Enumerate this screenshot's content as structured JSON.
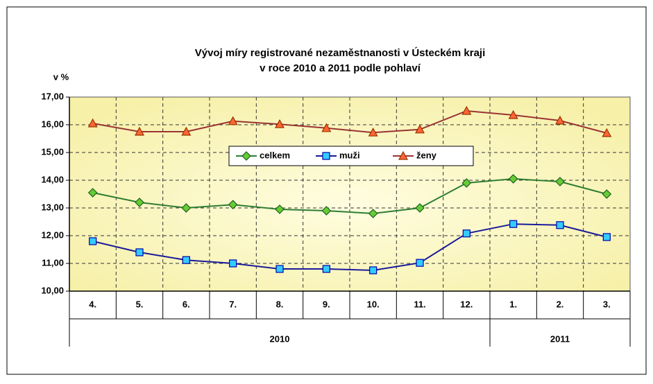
{
  "chart_data": {
    "type": "line",
    "title": [
      "Vývoj míry registrované nezaměstnanosti v Ústeckém kraji",
      "v roce 2010 a 2011 podle pohlaví"
    ],
    "y_label": "v %",
    "categories": [
      "4.",
      "5.",
      "6.",
      "7.",
      "8.",
      "9.",
      "10.",
      "11.",
      "12.",
      "1.",
      "2.",
      "3."
    ],
    "category_groups": [
      "2010",
      "2010",
      "2010",
      "2010",
      "2010",
      "2010",
      "2010",
      "2010",
      "2010",
      "2011",
      "2011",
      "2011"
    ],
    "series": [
      {
        "name": "celkem",
        "color": "#2e7d32",
        "marker": "diamond",
        "values": [
          13.55,
          13.2,
          13.0,
          13.12,
          12.95,
          12.9,
          12.8,
          13.0,
          13.9,
          14.05,
          13.95,
          13.5
        ]
      },
      {
        "name": "muži",
        "color": "#1a1a99",
        "marker": "square",
        "values": [
          11.8,
          11.4,
          11.12,
          11.0,
          10.8,
          10.8,
          10.75,
          11.02,
          12.08,
          12.42,
          12.38,
          11.95
        ]
      },
      {
        "name": "ženy",
        "color": "#993333",
        "marker": "triangle",
        "values": [
          16.05,
          15.75,
          15.75,
          16.13,
          16.02,
          15.88,
          15.72,
          15.83,
          16.5,
          16.35,
          16.15,
          15.7
        ]
      }
    ],
    "ylim": [
      10,
      17
    ],
    "yticks": [
      {
        "value": 10,
        "label": "10,00"
      },
      {
        "value": 11,
        "label": "11,00"
      },
      {
        "value": 12,
        "label": "12,00"
      },
      {
        "value": 13,
        "label": "13,00"
      },
      {
        "value": 14,
        "label": "14,00"
      },
      {
        "value": 15,
        "label": "15,00"
      },
      {
        "value": 16,
        "label": "16,00"
      },
      {
        "value": 17,
        "label": "17,00"
      }
    ],
    "grid": true
  }
}
